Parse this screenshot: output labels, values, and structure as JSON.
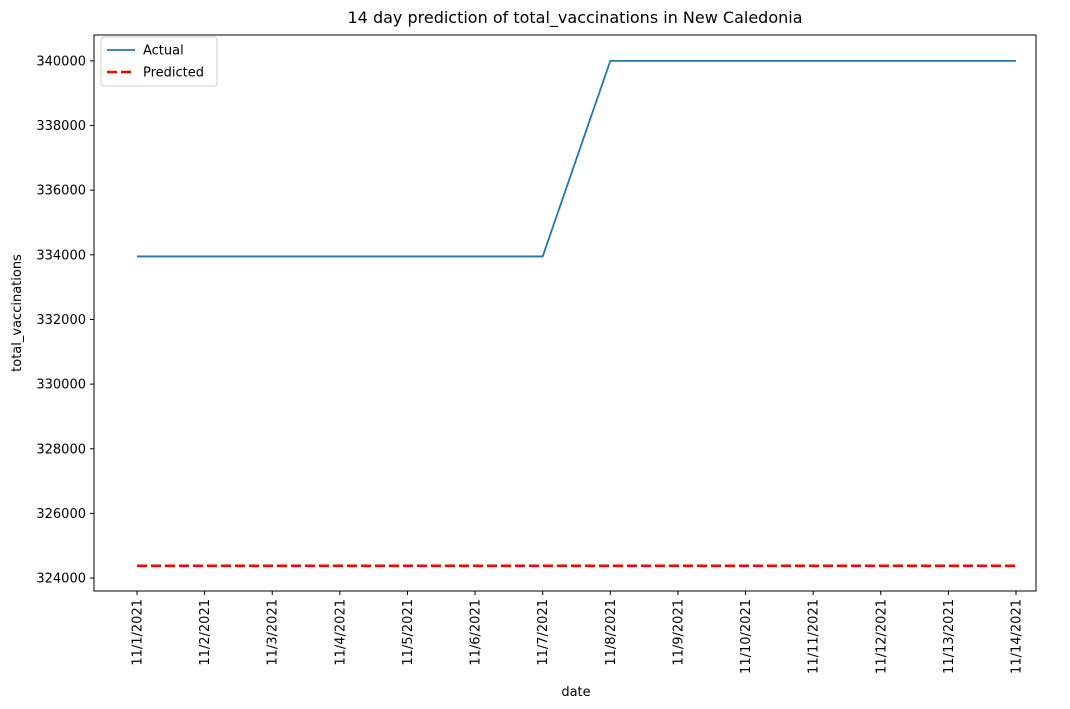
{
  "chart_data": {
    "type": "line",
    "title": "14 day prediction of total_vaccinations in New Caledonia",
    "xlabel": "date",
    "ylabel": "total_vaccinations",
    "categories": [
      "11/1/2021",
      "11/2/2021",
      "11/3/2021",
      "11/4/2021",
      "11/5/2021",
      "11/6/2021",
      "11/7/2021",
      "11/8/2021",
      "11/9/2021",
      "11/10/2021",
      "11/11/2021",
      "11/12/2021",
      "11/13/2021",
      "11/14/2021"
    ],
    "series": [
      {
        "name": "Actual",
        "color": "#1f77b4",
        "style": "solid",
        "values": [
          333950,
          333950,
          333950,
          333950,
          333950,
          333950,
          333950,
          340000,
          340000,
          340000,
          340000,
          340000,
          340000,
          340000
        ]
      },
      {
        "name": "Predicted",
        "color": "#ff0000",
        "style": "dashed",
        "values": [
          324380,
          324380,
          324380,
          324380,
          324380,
          324380,
          324380,
          324380,
          324380,
          324380,
          324380,
          324380,
          324380,
          324380
        ]
      }
    ],
    "ylim": [
      323600,
      340800
    ],
    "yticks": [
      324000,
      326000,
      328000,
      330000,
      332000,
      334000,
      336000,
      338000,
      340000
    ],
    "grid": false,
    "legend": "top-left"
  }
}
